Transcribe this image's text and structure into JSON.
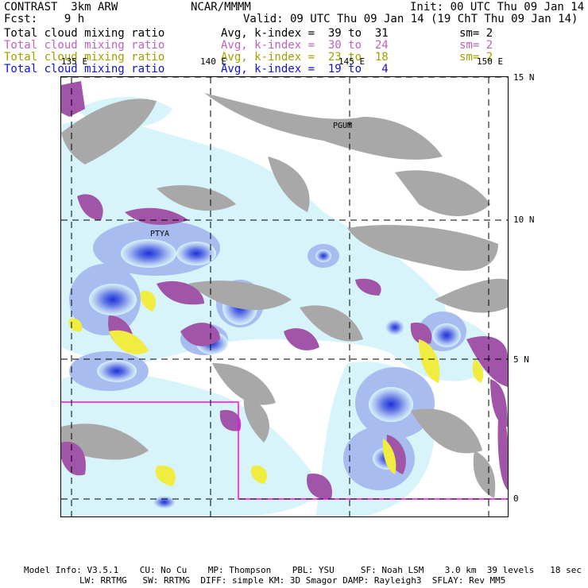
{
  "header": {
    "model": "CONTRAST  3km ARW",
    "center": "NCAR/MMMM",
    "init": "Init: 00 UTC Thu 09 Jan 14",
    "fcst": "Fcst:    9 h",
    "valid": "Valid: 09 UTC Thu 09 Jan 14 (19 ChT Thu 09 Jan 14)"
  },
  "fields": [
    {
      "name": "Total cloud mixing ratio",
      "range": "Avg, k-index =  39 to  31",
      "sm": "sm= 2",
      "color": "#000000"
    },
    {
      "name": "Total cloud mixing ratio",
      "range": "Avg, k-index =  30 to  24",
      "sm": "sm= 2",
      "color": "#c060c0"
    },
    {
      "name": "Total cloud mixing ratio",
      "range": "Avg, k-index =  23 to  18",
      "sm": "sm= 2",
      "color": "#a0a000"
    },
    {
      "name": "Total cloud mixing ratio",
      "range": "Avg, k-index =  19 to   4",
      "sm": "",
      "color": "#1010e0"
    }
  ],
  "map": {
    "lon_labels": [
      "135 E",
      "140 E",
      "145 E",
      "150 E"
    ],
    "lat_labels": [
      "15 N",
      "10 N",
      "5 N",
      "0"
    ],
    "places": [
      "PTYA",
      "PGUM"
    ]
  },
  "colors": {
    "high_cloud": "#a8a8a8",
    "mid_cloud": "#a055a8",
    "low_cloud": "#f0ec40",
    "light_blue": "#d6f4fa",
    "mid_blue": "#9fb4ee",
    "deep_blue": "#3040e0",
    "box": "#ff00ff"
  },
  "footer": {
    "line1": "Model Info: V3.5.1    CU: No Cu    MP: Thompson    PBL: YSU     SF: Noah LSM    3.0 km  39 levels   18 sec",
    "line2": "LW: RRTMG   SW: RRTMG  DIFF: simple KM: 3D Smagor DAMP: Rayleigh3  SFLAY: Rev MM5"
  }
}
